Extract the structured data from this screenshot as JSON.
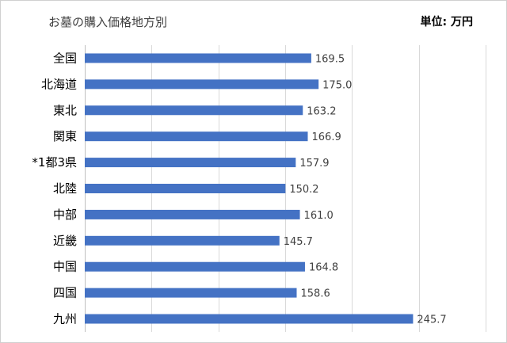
{
  "chart_data": {
    "type": "bar",
    "orientation": "horizontal",
    "title": "お墓の購入価格地方別",
    "unit_label": "単位: 万円",
    "categories": [
      "全国",
      "北海道",
      "東北",
      "関東",
      "*1都3県",
      "北陸",
      "中部",
      "近畿",
      "中国",
      "四国",
      "九州"
    ],
    "values": [
      169.5,
      175.0,
      163.2,
      166.9,
      157.9,
      150.2,
      161.0,
      145.7,
      164.8,
      158.6,
      245.7
    ],
    "value_labels": [
      "169.5",
      "175.0",
      "163.2",
      "166.9",
      "157.9",
      "150.2",
      "161.0",
      "145.7",
      "164.8",
      "158.6",
      "245.7"
    ],
    "xlim": [
      0,
      300
    ],
    "grid": true,
    "legend": "none",
    "bar_color": "#4472c4"
  }
}
